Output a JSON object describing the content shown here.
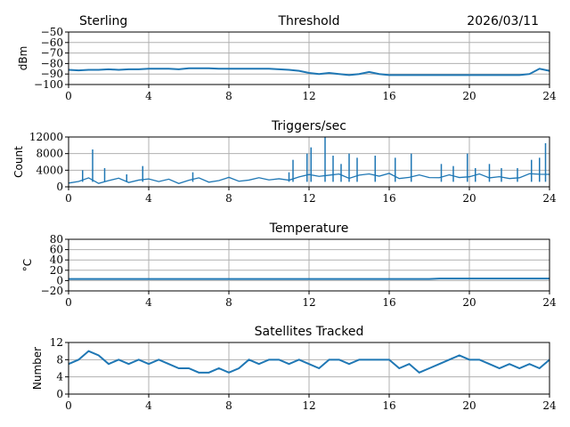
{
  "header": {
    "left": "Sterling",
    "right": "2026/03/11"
  },
  "chart_data": [
    {
      "type": "line",
      "title": "Threshold",
      "ylabel": "dBm",
      "xlim": [
        0,
        24
      ],
      "ylim": [
        -100,
        -50
      ],
      "xticks": [
        0,
        4,
        8,
        12,
        16,
        20,
        24
      ],
      "yticks": [
        -50,
        -60,
        -70,
        -80,
        -90,
        -100
      ],
      "ytick_labels": [
        "−50",
        "−60",
        "−70",
        "−80",
        "−90",
        "−100"
      ],
      "grid": true,
      "values": [
        -86,
        -86.5,
        -86,
        -86,
        -85.5,
        -86,
        -85.5,
        -85.5,
        -85,
        -85,
        -85,
        -85.5,
        -84.5,
        -84.5,
        -84.5,
        -85,
        -85,
        -85,
        -85,
        -85,
        -85,
        -85.5,
        -86,
        -87,
        -89,
        -90,
        -89,
        -90,
        -91,
        -90,
        -88,
        -90,
        -91,
        -91,
        -91,
        -91,
        -91,
        -91,
        -91,
        -91,
        -91,
        -91,
        -91,
        -91,
        -91,
        -91,
        -90,
        -85,
        -87
      ]
    },
    {
      "type": "line",
      "title": "Triggers/sec",
      "ylabel": "Count",
      "xlim": [
        0,
        24
      ],
      "ylim": [
        0,
        12000
      ],
      "xticks": [
        0,
        4,
        8,
        12,
        16,
        20,
        24
      ],
      "yticks": [
        0,
        4000,
        8000,
        12000
      ],
      "ytick_labels": [
        "0",
        "4000",
        "8000",
        "12000"
      ],
      "grid": true,
      "values": [
        1500,
        1400,
        1800,
        1300,
        1500,
        1600,
        1400,
        1500,
        1300,
        1500,
        1600,
        1400,
        1700,
        1800,
        1600,
        1500,
        1800,
        1700,
        1500,
        1600,
        1900,
        1700,
        2200,
        2500,
        2600,
        3000,
        2800,
        2600,
        2400,
        2700,
        2500,
        2800,
        3000,
        2600,
        2400,
        2500,
        2700,
        2200,
        2400,
        2600,
        2300,
        2500,
        2400,
        2200,
        2600,
        2300,
        2800,
        3500,
        3000
      ],
      "spikes": [
        [
          0.7,
          4000
        ],
        [
          1.2,
          9000
        ],
        [
          1.8,
          4500
        ],
        [
          2.9,
          3000
        ],
        [
          3.7,
          5000
        ],
        [
          6.2,
          3500
        ],
        [
          11.0,
          3500
        ],
        [
          11.2,
          6500
        ],
        [
          11.9,
          8000
        ],
        [
          12.1,
          9500
        ],
        [
          12.8,
          12000
        ],
        [
          13.2,
          7500
        ],
        [
          13.6,
          5500
        ],
        [
          14.0,
          8000
        ],
        [
          14.4,
          7000
        ],
        [
          15.3,
          7500
        ],
        [
          16.3,
          7000
        ],
        [
          17.1,
          8000
        ],
        [
          18.6,
          5500
        ],
        [
          19.2,
          5000
        ],
        [
          19.9,
          8000
        ],
        [
          20.3,
          4500
        ],
        [
          21.0,
          5500
        ],
        [
          21.6,
          4500
        ],
        [
          22.4,
          4500
        ],
        [
          23.1,
          6500
        ],
        [
          23.5,
          7000
        ],
        [
          23.8,
          10500
        ]
      ]
    },
    {
      "type": "line",
      "title": "Temperature",
      "ylabel": "°C",
      "xlim": [
        0,
        24
      ],
      "ylim": [
        -20,
        80
      ],
      "xticks": [
        0,
        4,
        8,
        12,
        16,
        20,
        24
      ],
      "yticks": [
        -20,
        0,
        20,
        40,
        60,
        80
      ],
      "ytick_labels": [
        "−20",
        "0",
        "20",
        "40",
        "60",
        "80"
      ],
      "grid": true,
      "values": [
        3,
        3,
        3,
        3,
        3,
        3,
        3,
        3,
        3,
        3,
        3,
        3,
        3,
        3,
        3,
        3,
        3,
        3,
        3,
        3,
        3,
        3,
        3,
        3,
        3,
        3,
        3,
        3,
        3,
        3,
        3,
        3,
        3,
        3,
        3,
        3,
        3,
        4,
        4,
        4,
        4,
        4,
        4,
        4,
        4,
        4,
        4,
        4,
        4
      ]
    },
    {
      "type": "line",
      "title": "Satellites Tracked",
      "ylabel": "Number",
      "xlim": [
        0,
        24
      ],
      "ylim": [
        0,
        12
      ],
      "xticks": [
        0,
        4,
        8,
        12,
        16,
        20,
        24
      ],
      "yticks": [
        0,
        4,
        8,
        12
      ],
      "ytick_labels": [
        "0",
        "4",
        "8",
        "12"
      ],
      "grid": true,
      "values": [
        7,
        8,
        10,
        9,
        7,
        8,
        7,
        8,
        7,
        8,
        7,
        6,
        6,
        5,
        5,
        6,
        5,
        6,
        8,
        7,
        8,
        8,
        7,
        8,
        7,
        6,
        8,
        8,
        7,
        8,
        8,
        8,
        8,
        6,
        7,
        5,
        6,
        7,
        8,
        9,
        8,
        8,
        7,
        6,
        7,
        6,
        7,
        6,
        8
      ]
    }
  ]
}
